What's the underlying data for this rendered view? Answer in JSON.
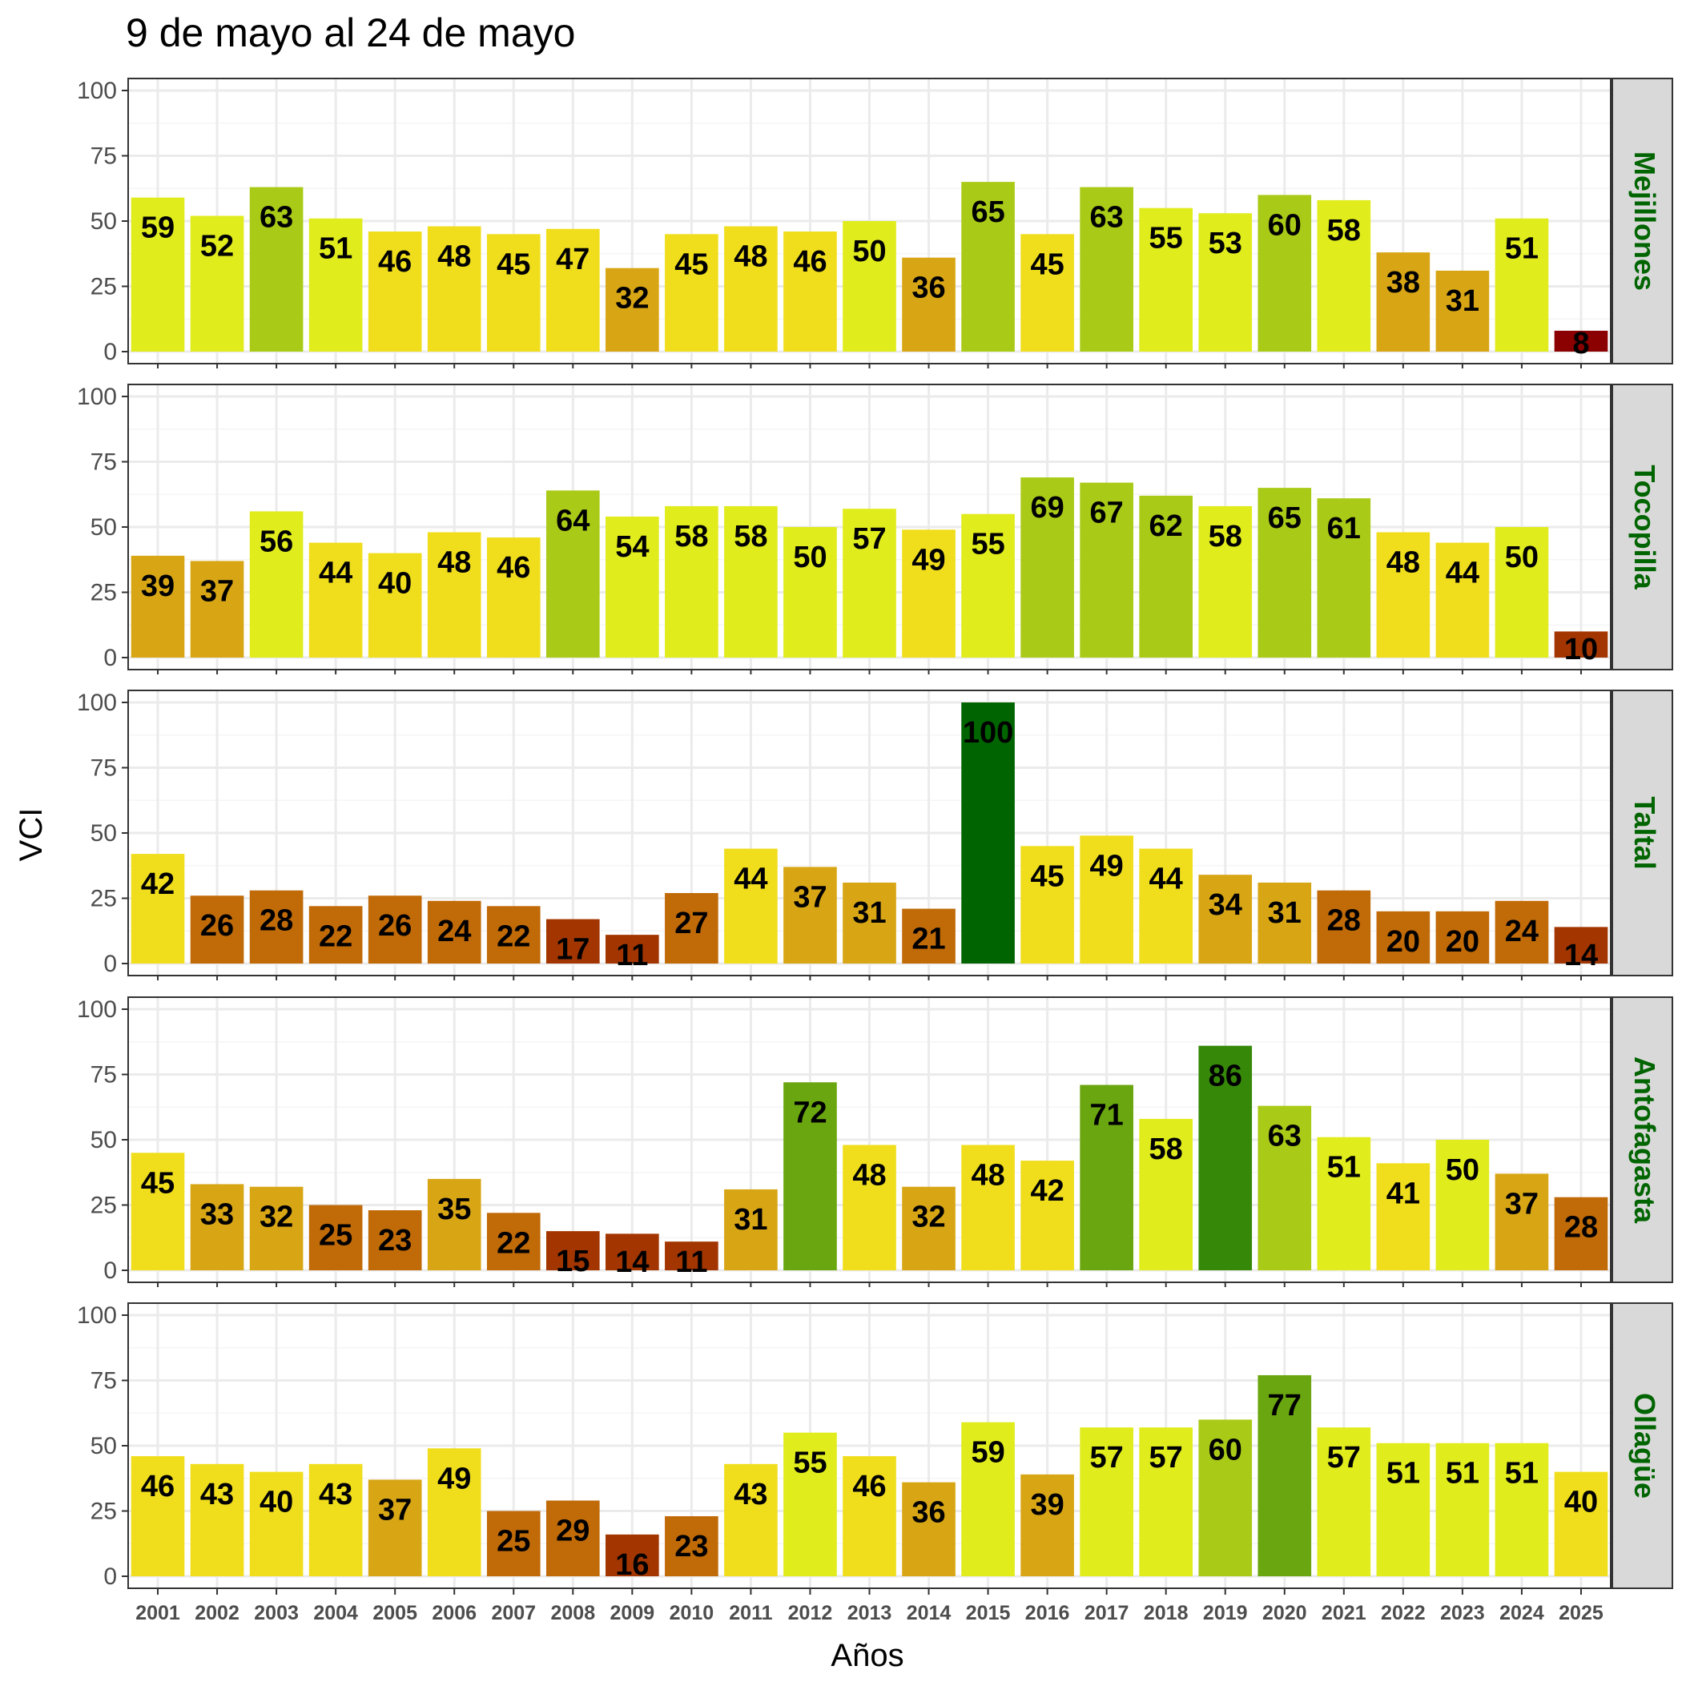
{
  "chart_data": {
    "type": "bar",
    "title": "9 de mayo al 24 de mayo",
    "xlabel": "Años",
    "ylabel": "VCI",
    "ylim": [
      0,
      100
    ],
    "yticks": [
      "0",
      "25",
      "50",
      "75",
      "100"
    ],
    "grid": true,
    "facet_position": "right",
    "categories": [
      "2001",
      "2002",
      "2003",
      "2004",
      "2005",
      "2006",
      "2007",
      "2008",
      "2009",
      "2010",
      "2011",
      "2012",
      "2013",
      "2014",
      "2015",
      "2016",
      "2017",
      "2018",
      "2019",
      "2020",
      "2021",
      "2022",
      "2023",
      "2024",
      "2025"
    ],
    "panels": [
      {
        "name": "Mejillones",
        "values": [
          59,
          52,
          63,
          51,
          46,
          48,
          45,
          47,
          32,
          45,
          48,
          46,
          50,
          36,
          65,
          45,
          63,
          55,
          53,
          60,
          58,
          38,
          31,
          51,
          8
        ]
      },
      {
        "name": "Tocopilla",
        "values": [
          39,
          37,
          56,
          44,
          40,
          48,
          46,
          64,
          54,
          58,
          58,
          50,
          57,
          49,
          55,
          69,
          67,
          62,
          58,
          65,
          61,
          48,
          44,
          50,
          10
        ]
      },
      {
        "name": "Taltal",
        "values": [
          42,
          26,
          28,
          22,
          26,
          24,
          22,
          17,
          11,
          27,
          44,
          37,
          31,
          21,
          100,
          45,
          49,
          44,
          34,
          31,
          28,
          20,
          20,
          24,
          14
        ]
      },
      {
        "name": "Antofagasta",
        "values": [
          45,
          33,
          32,
          25,
          23,
          35,
          22,
          15,
          14,
          11,
          31,
          72,
          48,
          32,
          48,
          42,
          71,
          58,
          86,
          63,
          51,
          41,
          50,
          37,
          28
        ]
      },
      {
        "name": "Ollagüe",
        "values": [
          46,
          43,
          40,
          43,
          37,
          49,
          25,
          29,
          16,
          23,
          43,
          55,
          46,
          36,
          59,
          39,
          57,
          57,
          60,
          77,
          57,
          51,
          51,
          51,
          40
        ]
      }
    ],
    "color_scale": [
      {
        "min": 0,
        "max": 10,
        "color": "#8b0000"
      },
      {
        "min": 10,
        "max": 20,
        "color": "#a33600"
      },
      {
        "min": 20,
        "max": 30,
        "color": "#c06a08"
      },
      {
        "min": 30,
        "max": 40,
        "color": "#d8a615"
      },
      {
        "min": 40,
        "max": 50,
        "color": "#f0de1d"
      },
      {
        "min": 50,
        "max": 60,
        "color": "#e0ec1c"
      },
      {
        "min": 60,
        "max": 70,
        "color": "#a9cb17"
      },
      {
        "min": 70,
        "max": 80,
        "color": "#6aa60f"
      },
      {
        "min": 80,
        "max": 90,
        "color": "#368809"
      },
      {
        "min": 90,
        "max": 101,
        "color": "#006400"
      }
    ],
    "colors": {
      "panel_border": "#333333",
      "strip_fill": "#d9d9d9",
      "strip_text": "#006400",
      "grid_major": "#ebebeb",
      "grid_minor": "#f5f5f5"
    }
  }
}
